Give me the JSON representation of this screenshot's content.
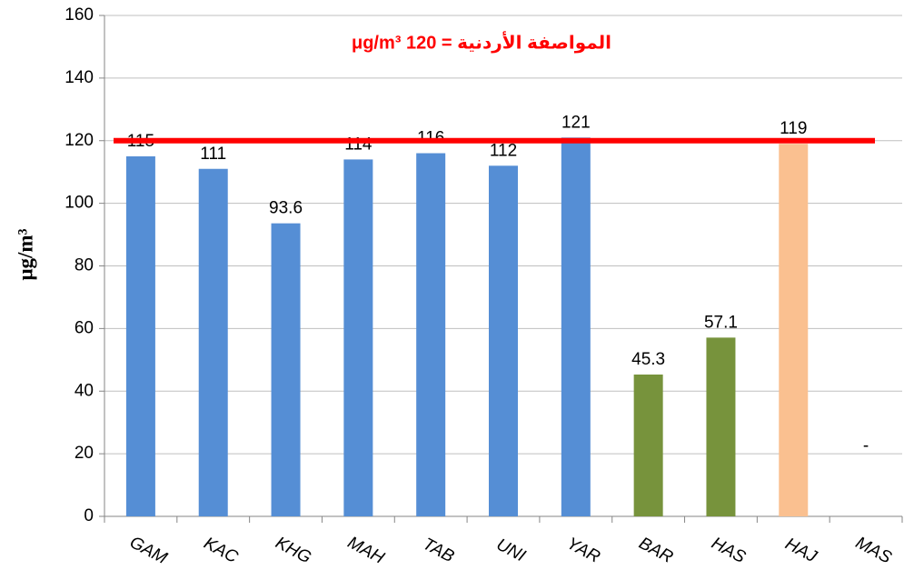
{
  "chart_data": {
    "type": "bar",
    "ylabel": "μg/m³",
    "categories": [
      "GAM",
      "KAC",
      "KHG",
      "MAH",
      "TAB",
      "UNI",
      "YAR",
      "BAR",
      "HAS",
      "HAJ",
      "MAS"
    ],
    "values": [
      115,
      111,
      93.6,
      114,
      116,
      112,
      121,
      45.3,
      57.1,
      119,
      null
    ],
    "value_labels": [
      "115",
      "111",
      "93.6",
      "114",
      "116",
      "112",
      "121",
      "45.3",
      "57.1",
      "119",
      "-"
    ],
    "colors": [
      "#558ed5",
      "#558ed5",
      "#558ed5",
      "#558ed5",
      "#558ed5",
      "#558ed5",
      "#558ed5",
      "#77933c",
      "#77933c",
      "#fac090",
      "#558ed5"
    ],
    "reference_line": {
      "value": 120,
      "label": "المواصفة الأردنية = 120 μg/m³",
      "color": "#ff0000"
    },
    "ylim": [
      0,
      160
    ],
    "yticks": [
      0,
      20,
      40,
      60,
      80,
      100,
      120,
      140,
      160
    ],
    "grid": true
  }
}
